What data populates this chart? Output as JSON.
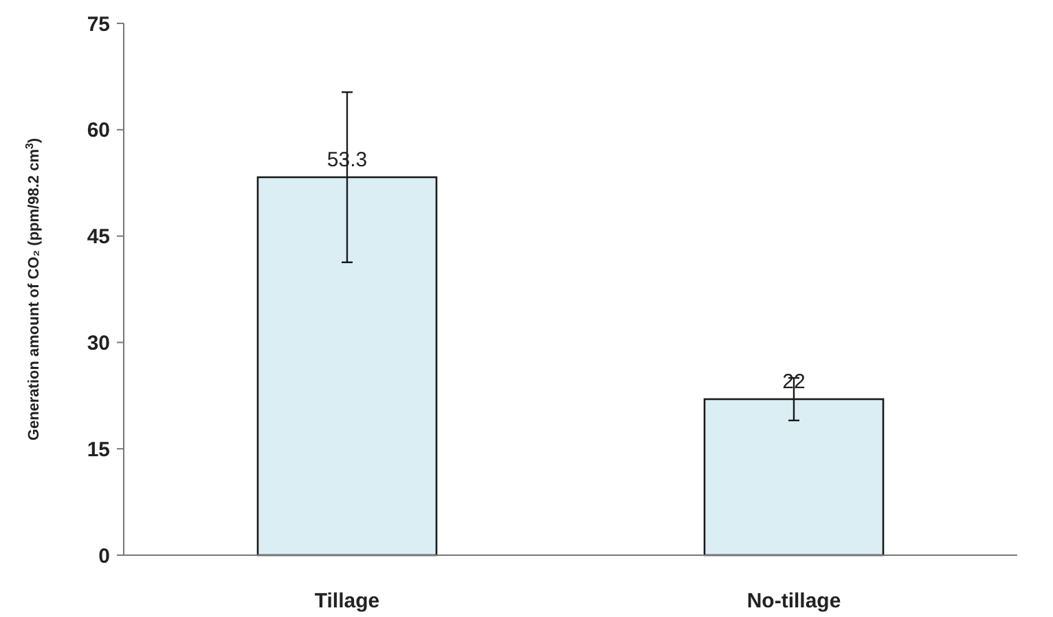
{
  "chart_data": {
    "type": "bar",
    "categories": [
      "Tillage",
      "No-tillage"
    ],
    "values": [
      53.3,
      22
    ],
    "errors": [
      12,
      3
    ],
    "color": "#dbeef3",
    "data_labels": true,
    "ylabel": "Generation amount of CO₂ (ppm/98.2 cm$^{3}$)",
    "ylim": [
      0,
      75
    ],
    "yticks": [
      0,
      15,
      30,
      45,
      60,
      75
    ],
    "grid": false
  }
}
